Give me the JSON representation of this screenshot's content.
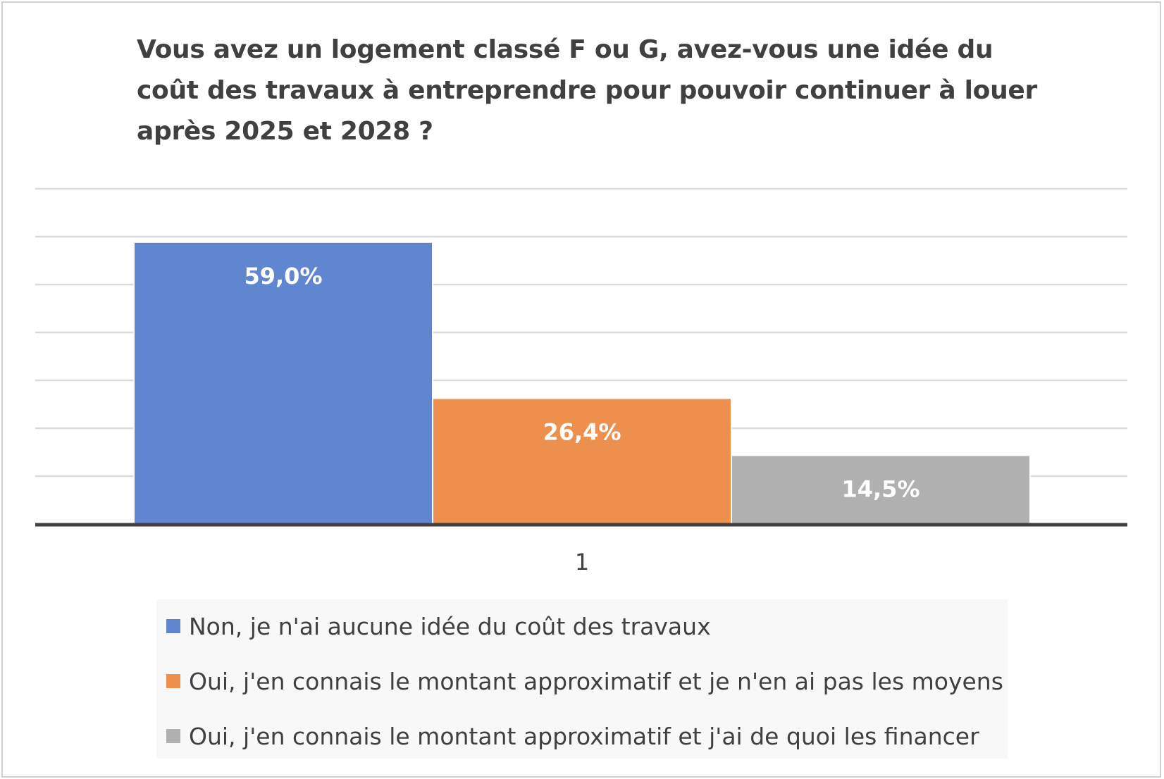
{
  "chart_data": {
    "type": "bar",
    "title": "Vous avez un logement classé F ou G, avez-vous une idée du coût des travaux à entreprendre pour pouvoir continuer à louer après 2025 et 2028 ?",
    "categories": [
      "1"
    ],
    "series": [
      {
        "name": "Non, je n'ai aucune idée du coût des travaux",
        "values": [
          59.0
        ],
        "label": "59,0%",
        "color": "#5f86cf"
      },
      {
        "name": "Oui, j'en connais le montant approximatif et je n'en ai pas les moyens",
        "values": [
          26.4
        ],
        "label": "26,4%",
        "color": "#ee904d"
      },
      {
        "name": "Oui, j'en connais le montant approximatif et j'ai de quoi les financer",
        "values": [
          14.5
        ],
        "label": "14,5%",
        "color": "#b0b0b0"
      }
    ],
    "ylim": [
      0,
      70
    ],
    "grid": true,
    "legend_position": "bottom",
    "xlabel": "",
    "ylabel": ""
  }
}
